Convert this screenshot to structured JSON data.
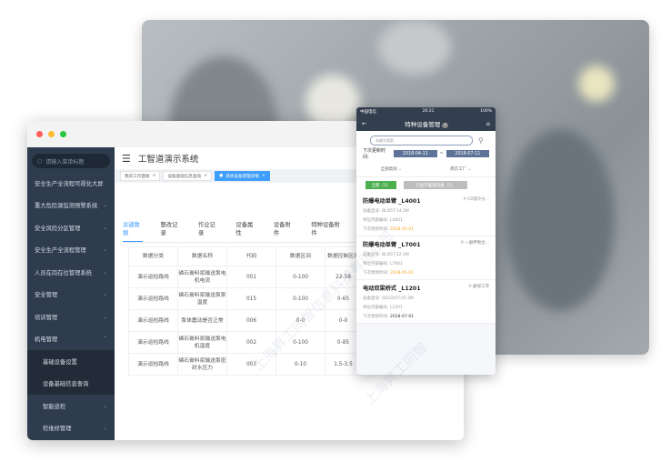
{
  "desktop": {
    "search_placeholder": "请输入菜单标题",
    "app_title": "工智道演示系统",
    "sidebar": [
      {
        "label": "安全生产全流程可视化大屏",
        "chevron": ""
      },
      {
        "label": "重大危险源监测预警系统",
        "chevron": "⌄"
      },
      {
        "label": "安全风险分区管理",
        "chevron": "⌄"
      },
      {
        "label": "安全生产全流程管理",
        "chevron": "⌄"
      },
      {
        "label": "人员在岗在位管理系统",
        "chevron": "⌄"
      },
      {
        "label": "安全管理",
        "chevron": "⌄"
      },
      {
        "label": "培训管理",
        "chevron": "⌄"
      },
      {
        "label": "机电管理",
        "chevron": "⌃"
      }
    ],
    "sub_items": [
      "基础设备设置",
      "设备基础信息查询"
    ],
    "sidebar_more": [
      {
        "label": "智能巡检",
        "chevron": "⌄"
      },
      {
        "label": "检维修管理",
        "chevron": "⌄"
      }
    ],
    "page_tabs": [
      "我的工作面板",
      "设备基础信息查询",
      "具体设备管理详情"
    ],
    "detail_tabs": [
      "关键数据",
      "整改记录",
      "作业记录",
      "设备属性",
      "设备附件",
      "特种设备附件"
    ],
    "table": {
      "headers": [
        "数据分类",
        "数据名称",
        "代码",
        "数据区间",
        "数据控制区间"
      ],
      "rows": [
        [
          "演示巡检路线",
          "磷石膏料浆输送泵电机电流",
          "001",
          "0-100",
          "22-58"
        ],
        [
          "演示巡检路线",
          "磷石膏料浆输送泵泵温度",
          "015",
          "0-100",
          "0-65"
        ],
        [
          "演示巡检路线",
          "泵体震动是否正常",
          "006",
          "0-0",
          "0-0"
        ],
        [
          "演示巡检路线",
          "磷石膏料浆输送泵电机温度",
          "002",
          "0-100",
          "0-85"
        ],
        [
          "演示巡检路线",
          "磷石膏料浆输送泵密封水压力",
          "003",
          "0-10",
          "1.5-3.5"
        ]
      ]
    }
  },
  "phone": {
    "carrier": "中国电信",
    "time": "20:21",
    "battery": "100%",
    "title": "特种设备管理",
    "search_placeholder": "关键字搜索",
    "date_label": "下次更新时间:",
    "date_from": "2018-04-11",
    "date_sep": "~",
    "date_to": "2018-07-11",
    "filter_category": "全部类别",
    "filter_factory": "南京工厂",
    "chip_all": "全部（3）",
    "chip_expiring": "只显示临期设备（2）",
    "cards": [
      {
        "name": "防爆电动单臂 _L4001",
        "location": "C0溶冷分...",
        "model_label": "设备型号:",
        "model": "BLD5T-14.5M",
        "code_label": "单位内部编号:",
        "code": "L4001",
        "date_label": "下次更新时间:",
        "date": "2018-05-01",
        "date_color": "#f5a623"
      },
      {
        "name": "防爆电动单臂 _L7001",
        "location": "一磨甲製合...",
        "model_label": "设备型号:",
        "model": "BLD5T-22.5M",
        "code_label": "单位内部编号:",
        "code": "L7001",
        "date_label": "下次更新时间:",
        "date": "2018-05-01",
        "date_color": "#f5a623"
      },
      {
        "name": "电动双梁桥式 _L1201",
        "location": "磨煤工序",
        "model_label": "设备型号:",
        "model": "QD32/5T-25.5M",
        "code_label": "单位内部编号:",
        "code": "L1201",
        "date_label": "下次更新时间:",
        "date": "2018-07-01",
        "date_color": "#333333"
      }
    ]
  },
  "watermark": "上海昇工同智信息科技有限公司",
  "colors": {
    "sidebar": "#2f3c4e",
    "accent": "#409eff",
    "phone_header": "#333e4e",
    "chip_green": "#4caf50"
  }
}
